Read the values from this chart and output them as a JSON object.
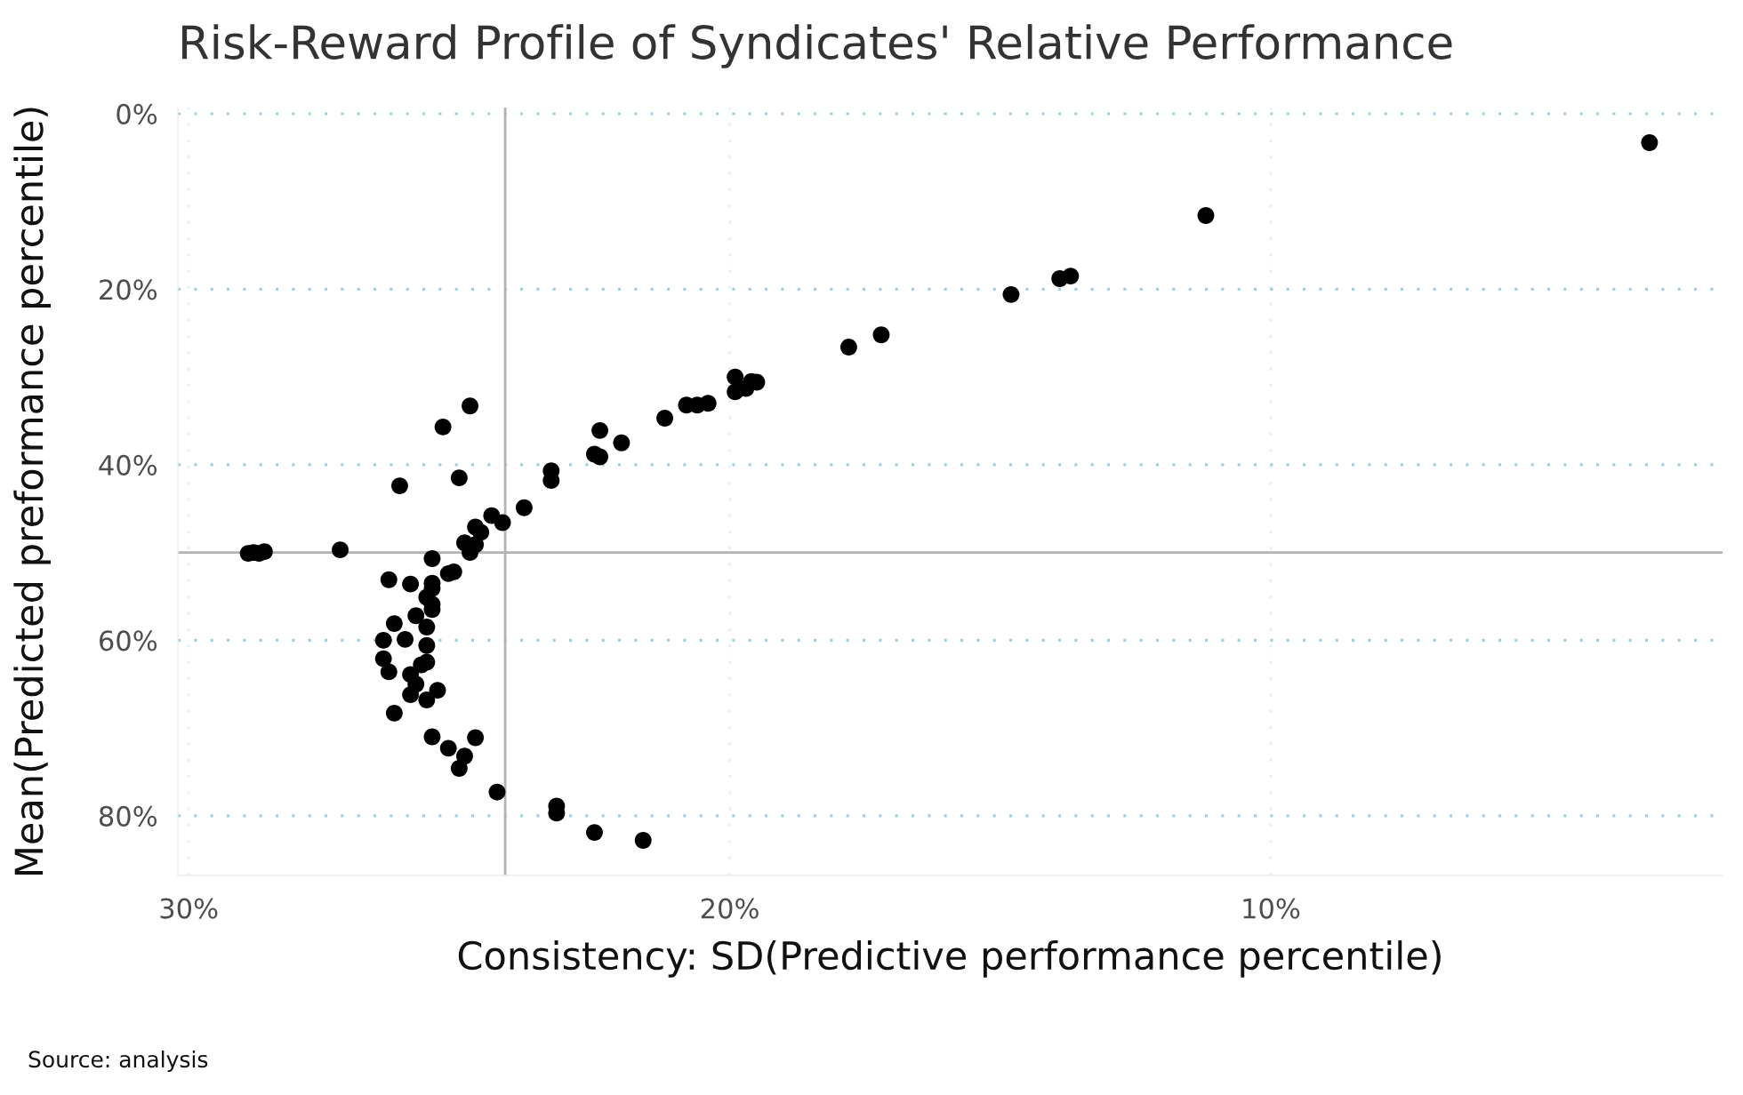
{
  "chart_data": {
    "type": "scatter",
    "title": "Risk-Reward Profile of Syndicates' Relative Performance",
    "xlabel": "Consistency: SD(Predictive performance percentile)",
    "ylabel": "Mean(Predicted preformance percentile)",
    "annotations": [
      "Source: analysis"
    ],
    "x": [
      28.9,
      28.8,
      28.7,
      28.6,
      27.2,
      24.8,
      25.3,
      25.0,
      26.1,
      23.8,
      24.4,
      24.2,
      24.7,
      24.6,
      24.9,
      24.7,
      24.8,
      25.5,
      25.2,
      25.1,
      26.3,
      25.9,
      25.5,
      25.5,
      25.6,
      25.5,
      25.5,
      25.8,
      26.2,
      25.6,
      26.4,
      26.0,
      25.6,
      26.4,
      25.6,
      25.7,
      26.3,
      25.9,
      25.8,
      25.4,
      25.9,
      25.6,
      26.2,
      25.5,
      24.7,
      25.2,
      24.9,
      25.0,
      24.3,
      23.3,
      23.3,
      22.5,
      22.4,
      22.4,
      22.0,
      21.2,
      20.8,
      20.6,
      20.4,
      19.9,
      19.9,
      19.7,
      19.6,
      19.5,
      23.2,
      23.2,
      22.5,
      21.6,
      17.8,
      17.2,
      14.8,
      13.9,
      13.7,
      11.2,
      3.0
    ],
    "series": [
      {
        "color": "#000000",
        "values": [
          50.1,
          50.0,
          50.1,
          49.9,
          49.7,
          33.3,
          35.7,
          41.5,
          42.4,
          44.9,
          45.8,
          46.6,
          47.1,
          47.7,
          48.9,
          49.1,
          50.0,
          50.7,
          52.4,
          52.2,
          53.1,
          53.6,
          53.5,
          54.1,
          55.1,
          55.9,
          56.5,
          57.2,
          58.1,
          58.5,
          60.0,
          59.9,
          60.6,
          62.1,
          62.5,
          62.8,
          63.6,
          63.9,
          65.0,
          65.7,
          66.2,
          66.8,
          68.3,
          71.0,
          71.1,
          72.3,
          73.2,
          74.6,
          77.3,
          41.8,
          40.7,
          38.8,
          39.1,
          36.1,
          37.5,
          34.7,
          33.2,
          33.2,
          33.0,
          30.0,
          31.7,
          31.3,
          30.5,
          30.6,
          78.9,
          79.7,
          81.9,
          82.8,
          26.6,
          25.2,
          20.6,
          18.8,
          18.5,
          11.6,
          3.3
        ]
      }
    ],
    "marker": "circle",
    "xlim": [
      30.2,
      1.65
    ],
    "ylim": [
      86.8,
      -0.7
    ],
    "xticks": [
      {
        "value": 30,
        "label": "30%"
      },
      {
        "value": 20,
        "label": "20%"
      },
      {
        "value": 10,
        "label": "10%"
      }
    ],
    "yticks": [
      {
        "value": 0,
        "label": "0%"
      },
      {
        "value": 20,
        "label": "20%"
      },
      {
        "value": 40,
        "label": "40%"
      },
      {
        "value": 60,
        "label": "60%"
      },
      {
        "value": 80,
        "label": "80%"
      }
    ],
    "grid": true,
    "ref_lines": [
      {
        "axis": "x",
        "value": 24.15,
        "color": "#b3b3b3"
      },
      {
        "axis": "y",
        "value": 50,
        "color": "#b3b3b3"
      }
    ]
  }
}
